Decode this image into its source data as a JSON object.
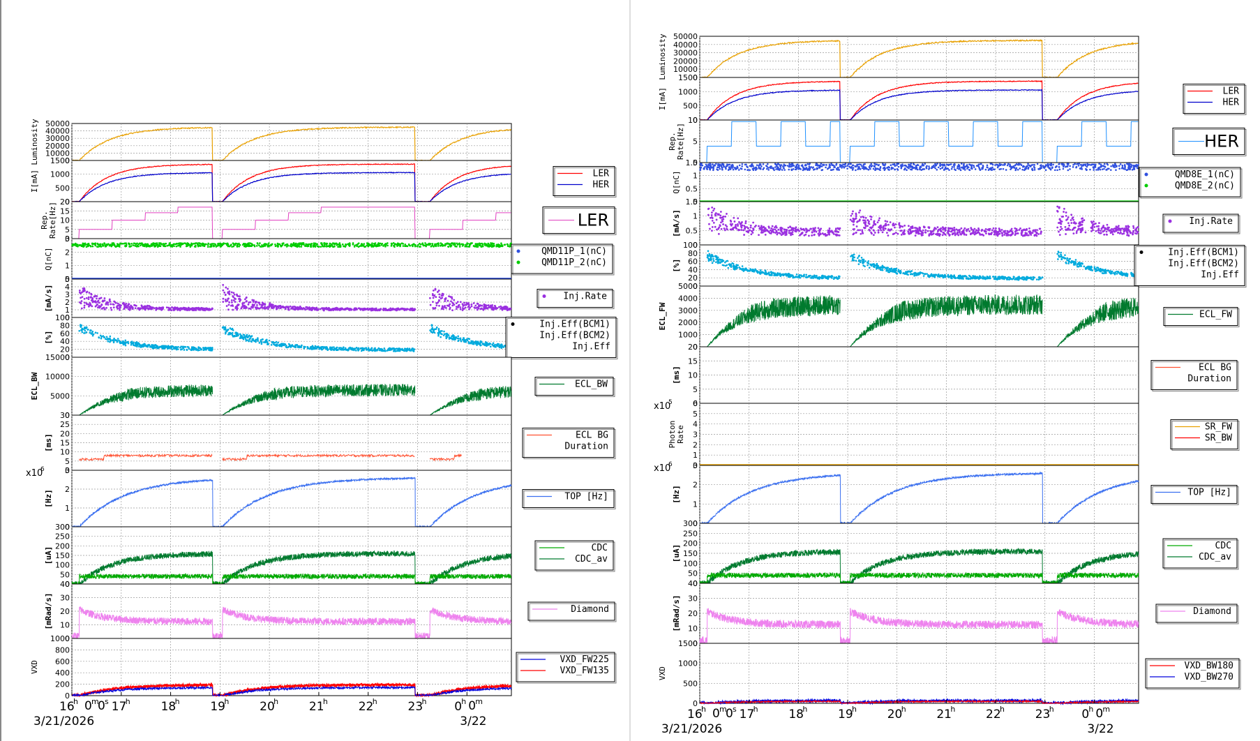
{
  "colors": {
    "ler": "#ff0000",
    "her": "#0000cc",
    "luminosity": "#e8a000",
    "rep_rate_ler": "#e040c0",
    "rep_rate_her": "#1e90ff",
    "charge_blue": "#3050e0",
    "charge_green": "#00cc00",
    "inj_rate": "#9a30e0",
    "inj_eff": "#00aadd",
    "ecl": "#007a2e",
    "ecl_bg": "#ff5030",
    "top": "#3a6ff0",
    "cdc": "#00aa00",
    "cdc_av": "#007a2e",
    "diamond": "#ee82ee",
    "vxd_a": "#0000dd",
    "vxd_b": "#ff0000",
    "sr_fw": "#e8a000",
    "sr_bw": "#ff0000"
  },
  "chart_data": [
    {
      "type": "line",
      "name": "left-figure",
      "x_tick_labels": [
        "16",
        "17",
        "18",
        "19",
        "20",
        "21",
        "22",
        "23",
        "0"
      ],
      "x_tick_sup_hour": "h",
      "x_tick_extra": "0m0s",
      "x_tick_extra_0": "0m",
      "date_left": "3/21/2026",
      "date_right": "3/22",
      "xlim_hours": [
        16.0,
        24.9
      ],
      "panels": [
        {
          "ylabel": "Luminosity",
          "yticks": [
            "50000",
            "40000",
            "30000",
            "20000",
            "10000",
            "0"
          ],
          "ylim": [
            0,
            50000
          ],
          "series": [
            {
              "values": [
                [
                  16.3,
                  0
                ],
                [
                  16.5,
                  3000
                ],
                [
                  16.8,
                  15000
                ],
                [
                  17.0,
                  32000
                ],
                [
                  17.3,
                  40000
                ],
                [
                  17.8,
                  44000
                ],
                [
                  18.3,
                  45000
                ],
                [
                  18.8,
                  45000
                ]
              ],
              "gaps": [
                18.8,
                19.5
              ],
              "after": [
                [
                  19.5,
                  20000
                ],
                [
                  20.0,
                  38000
                ],
                [
                  21.0,
                  42000
                ],
                [
                  22.0,
                  43000
                ],
                [
                  22.9,
                  43000
                ]
              ],
              "after2": [
                [
                  23.5,
                  20000
                ],
                [
                  23.9,
                  38000
                ],
                [
                  24.5,
                  43000
                ],
                [
                  24.9,
                  46000
                ]
              ]
            }
          ],
          "legend": null
        },
        {
          "ylabel": "I[mA]",
          "yticks": [
            "1500",
            "1000",
            "500",
            "0"
          ],
          "ylim": [
            0,
            1700
          ],
          "legend": [
            "LER",
            "HER"
          ],
          "legend_sizes": [
            12,
            12
          ]
        },
        {
          "ylabel": "Rep.\nRate[Hz]",
          "yticks": [
            "20",
            "15",
            "10",
            "5",
            "0"
          ],
          "ylim": [
            0,
            20
          ],
          "legend": [
            "LER"
          ],
          "legend_big": true
        },
        {
          "ylabel": "Q[nC]",
          "yticks": [
            "3",
            "2",
            "1",
            "0"
          ],
          "ylim": [
            0,
            3.2
          ],
          "legend": [
            "QMD11P_1(nC)",
            "QMD11P_2(nC)"
          ]
        },
        {
          "ylabel": "[mA/s]",
          "yticks": [
            "5",
            "4",
            "3",
            "2",
            "1",
            "0"
          ],
          "ylim": [
            0,
            5.5
          ],
          "legend": [
            "Inj.Rate"
          ]
        },
        {
          "ylabel": "[%]",
          "yticks": [
            "100",
            "80",
            "60",
            "40",
            "20",
            "0"
          ],
          "ylim": [
            0,
            105
          ],
          "legend": [
            "Inj.Eff(BCM1)",
            "Inj.Eff(BCM2)",
            "Inj.Eff"
          ]
        },
        {
          "ylabel": "ECL_BW",
          "yticks": [
            "15000",
            "10000",
            "5000",
            "0"
          ],
          "ylim": [
            0,
            15000
          ],
          "legend": [
            "ECL_BW"
          ]
        },
        {
          "ylabel": "[ms]",
          "yticks": [
            "30",
            "25",
            "20",
            "15",
            "10",
            "5",
            "0"
          ],
          "ylim": [
            0,
            30
          ],
          "legend": [
            "ECL BG",
            "Duration"
          ]
        },
        {
          "ylabel": "[Hz]",
          "yticks": [
            "3",
            "2",
            "1",
            "0"
          ],
          "ylim": [
            0,
            3.9
          ],
          "multiplier": "x10",
          "multiplier_exp": "6",
          "legend": [
            "TOP [Hz]"
          ]
        },
        {
          "ylabel": "[uA]",
          "yticks": [
            "300",
            "250",
            "200",
            "150",
            "100",
            "50",
            "0"
          ],
          "ylim": [
            0,
            300
          ],
          "legend": [
            "CDC",
            "CDC_av"
          ]
        },
        {
          "ylabel": "[mRad/s]",
          "yticks": [
            "40",
            "30",
            "20",
            "10",
            "0"
          ],
          "ylim": [
            0,
            45
          ],
          "legend": [
            "Diamond"
          ]
        },
        {
          "ylabel": "VXD",
          "yticks": [
            "1000",
            "800",
            "600",
            "400",
            "200",
            "0"
          ],
          "ylim": [
            0,
            1050
          ],
          "legend": [
            "VXD_FW225",
            "VXD_FW135"
          ]
        }
      ]
    },
    {
      "type": "line",
      "name": "right-figure",
      "date_left": "3/21/2026",
      "date_right": "3/22",
      "panels": [
        {
          "ylabel": "Luminosity",
          "yticks": [
            "50000",
            "40000",
            "30000",
            "20000",
            "10000",
            "0"
          ],
          "ylim": [
            0,
            50000
          ],
          "legend": null
        },
        {
          "ylabel": "I[mA]",
          "yticks": [
            "1500",
            "1000",
            "500",
            "0"
          ],
          "ylim": [
            0,
            1700
          ],
          "legend": [
            "LER",
            "HER"
          ]
        },
        {
          "ylabel": "Rep.\nRate[Hz]",
          "yticks": [
            "10",
            "5",
            "0"
          ],
          "ylim": [
            0,
            13
          ],
          "legend": [
            "HER"
          ],
          "legend_big": true
        },
        {
          "ylabel": "Q[nC]",
          "yticks": [
            "1.5",
            "1",
            "0.5",
            "0"
          ],
          "ylim": [
            0,
            1.8
          ],
          "legend": [
            "QMD8E_1(nC)",
            "QMD8E_2(nC)"
          ]
        },
        {
          "ylabel": "[mA/s]",
          "yticks": [
            "1.5",
            "1",
            "0.5",
            "0"
          ],
          "ylim": [
            0,
            1.7
          ],
          "legend": [
            "Inj.Rate"
          ]
        },
        {
          "ylabel": "[%]",
          "yticks": [
            "100",
            "80",
            "60",
            "40",
            "20",
            "0"
          ],
          "ylim": [
            0,
            105
          ],
          "legend": [
            "Inj.Eff(BCM1)",
            "Inj.Eff(BCM2)",
            "Inj.Eff"
          ]
        },
        {
          "ylabel": "ECL_FW",
          "yticks": [
            "5000",
            "4000",
            "3000",
            "2000",
            "1000",
            "0"
          ],
          "ylim": [
            0,
            5000
          ],
          "legend": [
            "ECL_FW"
          ]
        },
        {
          "ylabel": "[ms]",
          "yticks": [
            "20",
            "15",
            "10",
            "5",
            "0"
          ],
          "ylim": [
            0,
            20
          ],
          "legend": [
            "ECL BG",
            "Duration"
          ]
        },
        {
          "ylabel": "Photon\nRate",
          "yticks": [
            "6",
            "5",
            "4",
            "3",
            "2",
            "1",
            "0"
          ],
          "ylim": [
            0,
            6
          ],
          "multiplier": "x10",
          "multiplier_exp": "5",
          "legend": [
            "SR_FW",
            "SR_BW"
          ]
        },
        {
          "ylabel": "[Hz]",
          "yticks": [
            "3",
            "2",
            "1",
            "0"
          ],
          "ylim": [
            0,
            3.9
          ],
          "multiplier": "x10",
          "multiplier_exp": "6",
          "legend": [
            "TOP [Hz]"
          ]
        },
        {
          "ylabel": "[uA]",
          "yticks": [
            "300",
            "250",
            "200",
            "150",
            "100",
            "50",
            "0"
          ],
          "ylim": [
            0,
            300
          ],
          "legend": [
            "CDC",
            "CDC_av"
          ]
        },
        {
          "ylabel": "[mRad/s]",
          "yticks": [
            "40",
            "30",
            "20",
            "10",
            "0"
          ],
          "ylim": [
            0,
            45
          ],
          "legend": [
            "Diamond"
          ]
        },
        {
          "ylabel": "VXD",
          "yticks": [
            "1500",
            "1000",
            "500",
            "0"
          ],
          "ylim": [
            0,
            1800
          ],
          "legend": [
            "VXD_BW180",
            "VXD_BW270"
          ]
        }
      ]
    }
  ]
}
